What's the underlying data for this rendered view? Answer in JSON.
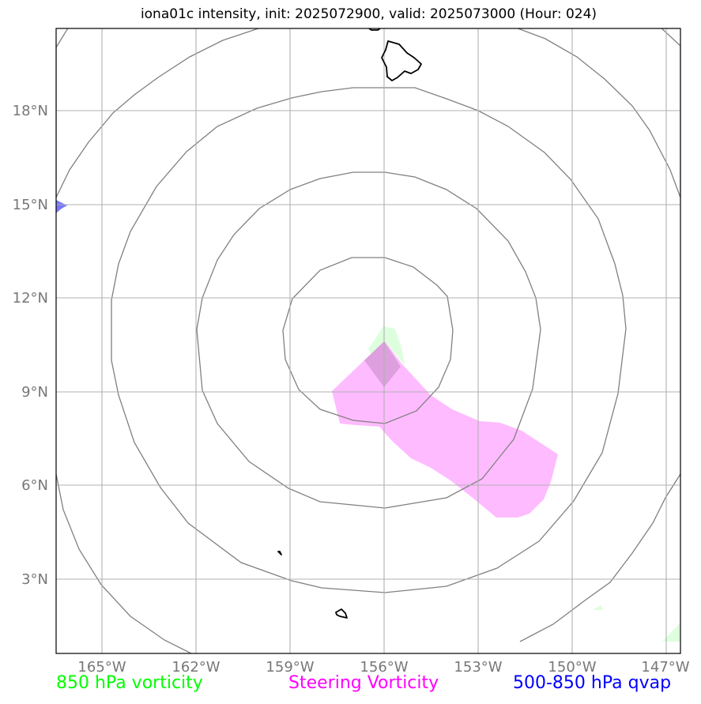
{
  "title": "iona01c intensity, init: 2025072900, valid: 2025073000 (Hour: 024)",
  "lon_labels": [
    "165°W",
    "162°W",
    "159°W",
    "156°W",
    "153°W",
    "150°W",
    "147°W"
  ],
  "lat_labels": [
    "18°N",
    "15°N",
    "12°N",
    "9°N",
    "6°N",
    "3°N"
  ],
  "legend": [
    {
      "label": "850 hPa vorticity",
      "color": "#00ff00"
    },
    {
      "label": "Steering Vorticity",
      "color": "#ff00ff"
    },
    {
      "label": "500-850 hPa qvap",
      "color": "#0000ff"
    }
  ],
  "colors": {
    "steering_fill": "#ffbbff",
    "vorticity_fill": "#ddffdd",
    "qvap_fill": "#7777ff",
    "overlap_fill": "#dd9fdd",
    "range_rings": "#808080",
    "grid": "#b0b0b0",
    "coastline": "#000000"
  }
}
